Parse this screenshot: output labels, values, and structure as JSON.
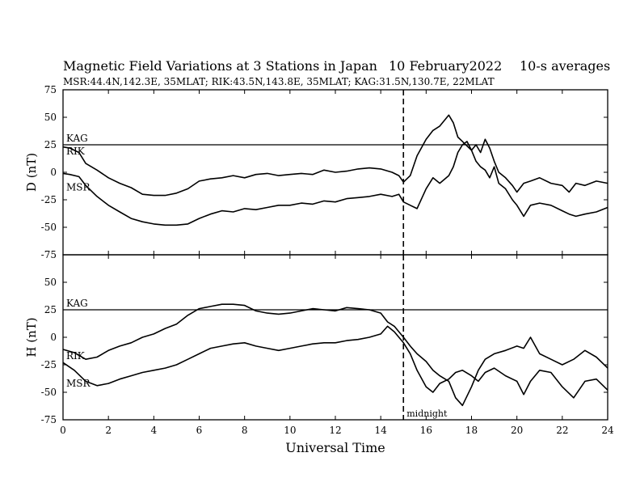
{
  "header": {
    "title": "Magnetic Field Variations at 3 Stations in Japan",
    "date": "10 February2022",
    "averaging": "10-s averages",
    "stations_line": "MSR:44.4N,142.3E, 35MLAT;  RIK:43.5N,143.8E, 35MLAT;  KAG:31.5N,130.7E, 22MLAT"
  },
  "chart_data": [
    {
      "type": "line",
      "panel": "top",
      "ylabel": "D (nT)",
      "xlim": [
        0,
        24
      ],
      "ylim": [
        -75,
        75
      ],
      "yticks": [
        75,
        50,
        25,
        0,
        -25,
        -50,
        -75
      ],
      "xticks": [
        0,
        2,
        4,
        6,
        8,
        10,
        12,
        14,
        16,
        18,
        20,
        22,
        24
      ],
      "reference_line": {
        "label": "KAG",
        "y": 25
      },
      "marker": {
        "x": 15,
        "style": "dashed"
      },
      "series": [
        {
          "name": "RIK",
          "color": "#000000",
          "x": [
            0,
            0.3,
            0.7,
            1.0,
            1.5,
            2.0,
            2.5,
            3.0,
            3.5,
            4.0,
            4.5,
            5.0,
            5.5,
            6.0,
            6.5,
            7.0,
            7.5,
            8.0,
            8.5,
            9.0,
            9.5,
            10.0,
            10.5,
            11.0,
            11.5,
            12.0,
            12.5,
            13.0,
            13.5,
            14.0,
            14.5,
            14.8,
            15.0,
            15.3,
            15.6,
            16.0,
            16.3,
            16.6,
            17.0,
            17.2,
            17.4,
            17.6,
            17.8,
            18.0,
            18.2,
            18.4,
            18.6,
            18.8,
            19.0,
            19.2,
            19.5,
            19.8,
            20.0,
            20.3,
            20.6,
            21.0,
            21.5,
            22.0,
            22.3,
            22.6,
            23.0,
            23.5,
            24.0
          ],
          "y": [
            23,
            22,
            18,
            8,
            2,
            -5,
            -10,
            -14,
            -20,
            -21,
            -21,
            -19,
            -15,
            -8,
            -6,
            -5,
            -3,
            -5,
            -2,
            -1,
            -3,
            -2,
            -1,
            -2,
            2,
            0,
            1,
            3,
            4,
            3,
            0,
            -3,
            -9,
            -3,
            15,
            30,
            38,
            42,
            52,
            45,
            32,
            28,
            24,
            20,
            25,
            18,
            30,
            22,
            10,
            0,
            -5,
            -12,
            -18,
            -10,
            -8,
            -5,
            -10,
            -12,
            -18,
            -10,
            -12,
            -8,
            -10
          ]
        },
        {
          "name": "MSR",
          "color": "#000000",
          "x": [
            0,
            0.3,
            0.7,
            1.0,
            1.5,
            2.0,
            2.5,
            3.0,
            3.5,
            4.0,
            4.5,
            5.0,
            5.5,
            6.0,
            6.5,
            7.0,
            7.5,
            8.0,
            8.5,
            9.0,
            9.5,
            10.0,
            10.5,
            11.0,
            11.5,
            12.0,
            12.5,
            13.0,
            13.5,
            14.0,
            14.5,
            14.8,
            15.0,
            15.3,
            15.6,
            16.0,
            16.3,
            16.6,
            17.0,
            17.2,
            17.4,
            17.6,
            17.8,
            18.0,
            18.2,
            18.4,
            18.6,
            18.8,
            19.0,
            19.2,
            19.5,
            19.8,
            20.0,
            20.3,
            20.6,
            21.0,
            21.5,
            22.0,
            22.3,
            22.6,
            23.0,
            23.5,
            24.0
          ],
          "y": [
            -1,
            -2,
            -4,
            -12,
            -22,
            -30,
            -36,
            -42,
            -45,
            -47,
            -48,
            -48,
            -47,
            -42,
            -38,
            -35,
            -36,
            -33,
            -34,
            -32,
            -30,
            -30,
            -28,
            -29,
            -26,
            -27,
            -24,
            -23,
            -22,
            -20,
            -22,
            -20,
            -27,
            -30,
            -33,
            -15,
            -5,
            -10,
            -3,
            5,
            18,
            25,
            28,
            20,
            10,
            5,
            2,
            -5,
            5,
            -10,
            -15,
            -25,
            -30,
            -40,
            -30,
            -28,
            -30,
            -35,
            -38,
            -40,
            -38,
            -36,
            -32
          ]
        }
      ],
      "labels": [
        "KAG",
        "RIK",
        "MSR"
      ]
    },
    {
      "type": "line",
      "panel": "bottom",
      "ylabel": "H (nT)",
      "xlabel": "Universal Time",
      "xlim": [
        0,
        24
      ],
      "ylim": [
        -75,
        75
      ],
      "yticks": [
        75,
        50,
        25,
        0,
        -25,
        -50,
        -75
      ],
      "xticks": [
        0,
        2,
        4,
        6,
        8,
        10,
        12,
        14,
        16,
        18,
        20,
        22,
        24
      ],
      "reference_line": {
        "label": "KAG",
        "y": 25
      },
      "marker": {
        "x": 15,
        "style": "dashed",
        "label": "midnight"
      },
      "series": [
        {
          "name": "RIK",
          "color": "#000000",
          "x": [
            0,
            0.5,
            1.0,
            1.5,
            2.0,
            2.5,
            3.0,
            3.5,
            4.0,
            4.5,
            5.0,
            5.5,
            6.0,
            6.5,
            7.0,
            7.5,
            8.0,
            8.5,
            9.0,
            9.5,
            10.0,
            10.5,
            11.0,
            11.5,
            12.0,
            12.5,
            13.0,
            13.5,
            14.0,
            14.3,
            14.6,
            15.0,
            15.3,
            15.6,
            16.0,
            16.3,
            16.6,
            17.0,
            17.3,
            17.6,
            18.0,
            18.3,
            18.6,
            19.0,
            19.5,
            20.0,
            20.3,
            20.6,
            21.0,
            21.5,
            22.0,
            22.5,
            23.0,
            23.5,
            24.0
          ],
          "y": [
            -11,
            -14,
            -20,
            -18,
            -12,
            -8,
            -5,
            0,
            3,
            8,
            12,
            20,
            26,
            28,
            30,
            30,
            29,
            24,
            22,
            21,
            22,
            24,
            26,
            25,
            24,
            27,
            26,
            25,
            22,
            14,
            10,
            0,
            -8,
            -15,
            -22,
            -30,
            -35,
            -40,
            -55,
            -62,
            -45,
            -30,
            -20,
            -15,
            -12,
            -8,
            -10,
            0,
            -15,
            -20,
            -25,
            -20,
            -12,
            -18,
            -28
          ]
        },
        {
          "name": "MSR",
          "color": "#000000",
          "x": [
            0,
            0.5,
            1.0,
            1.5,
            2.0,
            2.5,
            3.0,
            3.5,
            4.0,
            4.5,
            5.0,
            5.5,
            6.0,
            6.5,
            7.0,
            7.5,
            8.0,
            8.5,
            9.0,
            9.5,
            10.0,
            10.5,
            11.0,
            11.5,
            12.0,
            12.5,
            13.0,
            13.5,
            14.0,
            14.3,
            14.6,
            15.0,
            15.3,
            15.6,
            16.0,
            16.3,
            16.6,
            17.0,
            17.3,
            17.6,
            18.0,
            18.3,
            18.6,
            19.0,
            19.5,
            20.0,
            20.3,
            20.6,
            21.0,
            21.5,
            22.0,
            22.5,
            23.0,
            23.5,
            24.0
          ],
          "y": [
            -23,
            -30,
            -40,
            -44,
            -42,
            -38,
            -35,
            -32,
            -30,
            -28,
            -25,
            -20,
            -15,
            -10,
            -8,
            -6,
            -5,
            -8,
            -10,
            -12,
            -10,
            -8,
            -6,
            -5,
            -5,
            -3,
            -2,
            0,
            3,
            10,
            5,
            -5,
            -15,
            -30,
            -45,
            -50,
            -42,
            -38,
            -32,
            -30,
            -35,
            -40,
            -32,
            -28,
            -35,
            -40,
            -52,
            -40,
            -30,
            -32,
            -45,
            -55,
            -40,
            -38,
            -48
          ]
        }
      ],
      "labels": [
        "KAG",
        "RIK",
        "MSR"
      ]
    }
  ]
}
